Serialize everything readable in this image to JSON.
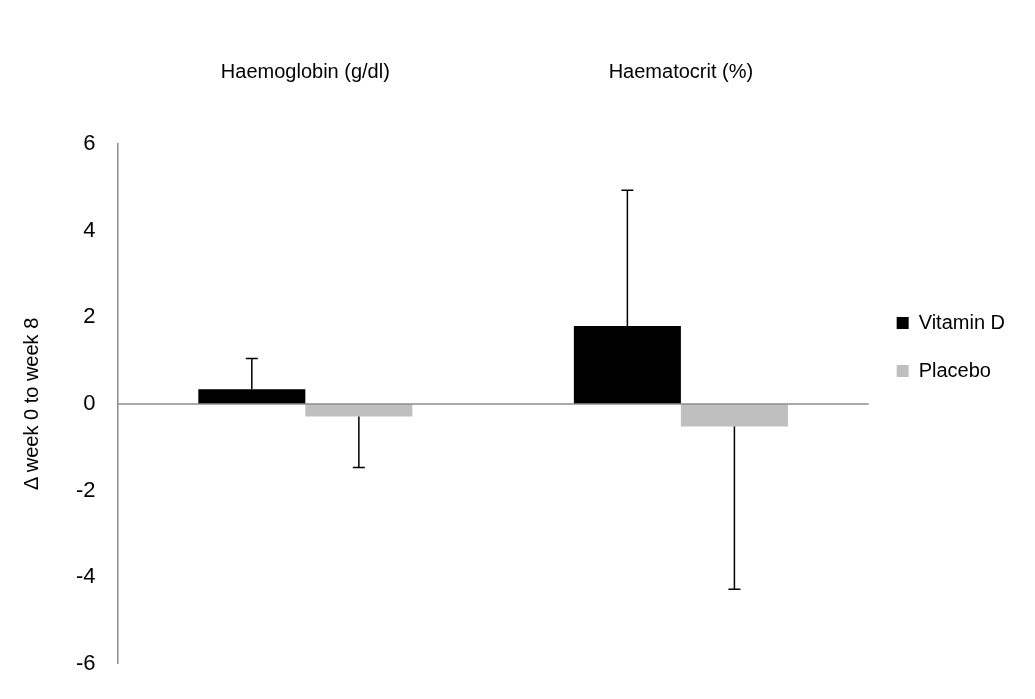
{
  "chart_data": {
    "type": "bar",
    "ylabel": "Δ week 0 to week 8",
    "categories": [
      "Haemoglobin (g/dl)",
      "Haematocrit (%)"
    ],
    "series": [
      {
        "name": "Vitamin D",
        "color": "#000000",
        "values": [
          0.34,
          1.8
        ],
        "errors": [
          [
            0.34,
            1.05
          ],
          [
            1.8,
            4.93
          ]
        ]
      },
      {
        "name": "Placebo",
        "color": "#bfbfbf",
        "values": [
          -0.29,
          -0.52
        ],
        "errors": [
          [
            -1.47,
            -0.29
          ],
          [
            -4.28,
            -0.52
          ]
        ]
      }
    ],
    "ylim": [
      -6,
      6
    ],
    "yticks": [
      -6,
      -4,
      -2,
      0,
      2,
      4,
      6
    ],
    "legend": "right"
  }
}
